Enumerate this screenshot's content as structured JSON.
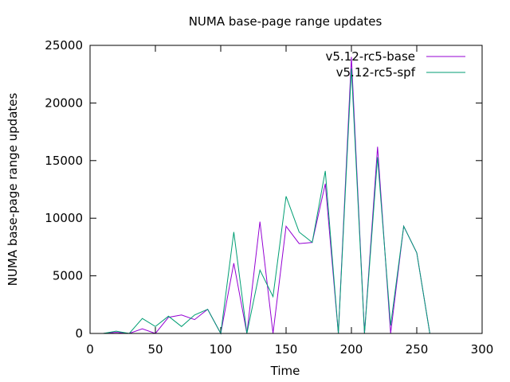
{
  "chart_data": {
    "type": "line",
    "title": "NUMA base-page range updates",
    "xlabel": "Time",
    "ylabel": "NUMA base-page range updates",
    "xlim": [
      0,
      300
    ],
    "ylim": [
      0,
      25000
    ],
    "xticks": [
      "0",
      "50",
      "100",
      "150",
      "200",
      "250",
      "300"
    ],
    "yticks": [
      "0",
      "5000",
      "10000",
      "15000",
      "20000",
      "25000"
    ],
    "grid": false,
    "legend": "top-right",
    "series": [
      {
        "name": "v5.12-rc5-base",
        "color": "#9400d3",
        "x": [
          10,
          20,
          30,
          40,
          50,
          60,
          70,
          80,
          90,
          100,
          110,
          120,
          130,
          140,
          150,
          160,
          170,
          180,
          190,
          200,
          210,
          220,
          230,
          240,
          250,
          260
        ],
        "y": [
          0,
          100,
          0,
          400,
          0,
          1400,
          1600,
          1200,
          2100,
          0,
          6100,
          0,
          9700,
          0,
          9300,
          7800,
          7900,
          13000,
          0,
          24000,
          0,
          16200,
          0,
          9300,
          7000,
          0
        ]
      },
      {
        "name": "v5.12-rc5-spf",
        "color": "#009e73",
        "x": [
          10,
          20,
          30,
          40,
          50,
          60,
          70,
          80,
          90,
          100,
          110,
          120,
          130,
          140,
          150,
          160,
          170,
          180,
          190,
          200,
          210,
          220,
          230,
          240,
          250,
          260
        ],
        "y": [
          0,
          200,
          0,
          1300,
          600,
          1500,
          600,
          1600,
          2100,
          0,
          8800,
          0,
          5500,
          3200,
          11900,
          8800,
          7900,
          14100,
          0,
          23000,
          0,
          15300,
          700,
          9300,
          7000,
          0
        ]
      }
    ]
  }
}
